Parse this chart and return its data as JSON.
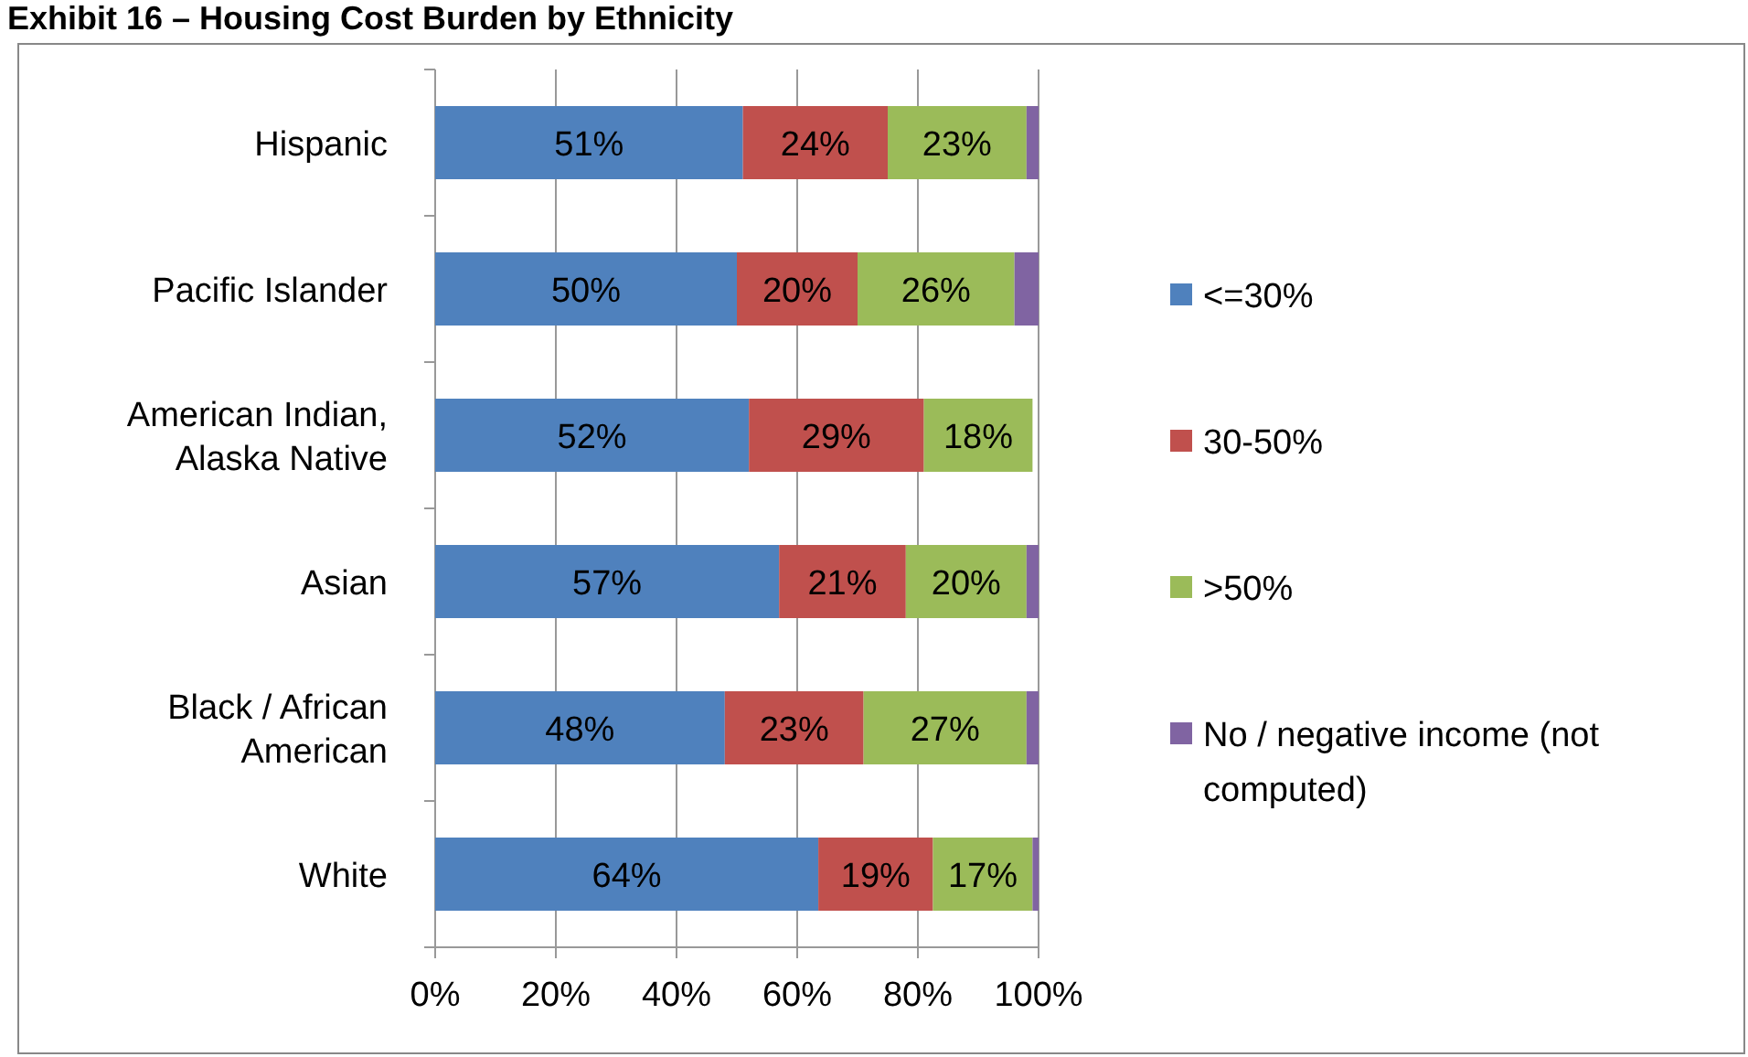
{
  "chart_data": {
    "type": "bar",
    "orientation": "horizontal",
    "stacked": true,
    "title": "Exhibit 16 – Housing Cost Burden by Ethnicity",
    "categories": [
      "Hispanic",
      "Pacific Islander",
      "American Indian, Alaska Native",
      "Asian",
      "Black / African American",
      "White"
    ],
    "series": [
      {
        "name": "<=30%",
        "color": "#4f81bd",
        "values": [
          51,
          50,
          52,
          57,
          48,
          63.5
        ],
        "value_labels": [
          "51%",
          "50%",
          "52%",
          "57%",
          "48%",
          "64%"
        ]
      },
      {
        "name": "30-50%",
        "color": "#c0504d",
        "values": [
          24,
          20,
          29,
          21,
          23,
          19
        ],
        "value_labels": [
          "24%",
          "20%",
          "29%",
          "21%",
          "23%",
          "19%"
        ]
      },
      {
        "name": ">50%",
        "color": "#9bbb59",
        "values": [
          23,
          26,
          18,
          20,
          27,
          16.5
        ],
        "value_labels": [
          "23%",
          "26%",
          "18%",
          "20%",
          "27%",
          "17%"
        ]
      },
      {
        "name": "No / negative income (not computed)",
        "color": "#8064a2",
        "values": [
          2,
          4,
          0,
          2,
          2,
          1
        ]
      }
    ],
    "xlim": [
      0,
      100
    ],
    "xticks": [
      {
        "value": 0,
        "label": "0%"
      },
      {
        "value": 20,
        "label": "20%"
      },
      {
        "value": 40,
        "label": "40%"
      },
      {
        "value": 60,
        "label": "60%"
      },
      {
        "value": 80,
        "label": "80%"
      },
      {
        "value": 100,
        "label": "100%"
      }
    ],
    "grid": "x",
    "legend": "right"
  }
}
